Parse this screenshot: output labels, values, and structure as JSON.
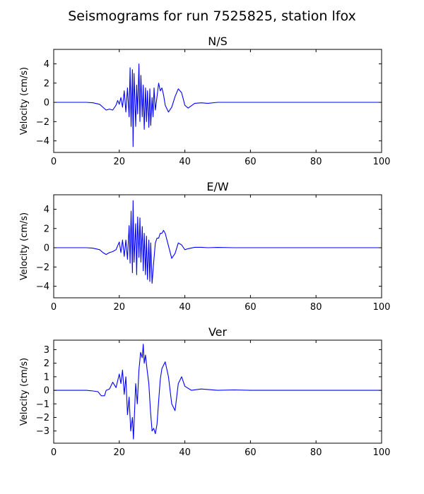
{
  "figure": {
    "title": "Seismograms for run 7525825, station lfox"
  },
  "chart_data": [
    {
      "type": "line",
      "title": "N/S",
      "xlabel": "",
      "ylabel": "Velocity (cm/s)",
      "xlim": [
        0,
        100
      ],
      "ylim": [
        -5.2,
        5.5
      ],
      "xticks": [
        0,
        20,
        40,
        60,
        80,
        100
      ],
      "yticks": [
        -4,
        -2,
        0,
        2,
        4
      ],
      "grid": false,
      "series": [
        {
          "color": "#0000ff",
          "x": [
            0,
            10,
            12,
            14,
            15,
            16,
            17,
            18,
            19,
            19.5,
            20,
            20.5,
            21,
            21.5,
            22,
            22.5,
            23,
            23.3,
            23.6,
            24,
            24.2,
            24.5,
            25,
            25.3,
            25.6,
            26,
            26.3,
            26.6,
            27,
            27.3,
            27.6,
            28,
            28.3,
            28.6,
            29,
            29.3,
            29.6,
            30,
            30.3,
            30.6,
            31,
            31.5,
            32,
            32.5,
            33,
            33.5,
            34,
            35,
            36,
            37,
            38,
            39,
            40,
            41,
            43,
            45,
            47,
            50,
            55,
            60,
            100
          ],
          "y": [
            0,
            0,
            -0.05,
            -0.2,
            -0.5,
            -0.8,
            -0.7,
            -0.8,
            -0.3,
            0.2,
            -0.2,
            0.5,
            -0.5,
            1.2,
            -1,
            1.5,
            -1.5,
            3.6,
            -2.5,
            3.4,
            -4.6,
            3,
            -2.5,
            1.8,
            -1.2,
            4.0,
            -2,
            2.8,
            -1.5,
            1.8,
            -2.8,
            1.5,
            -2,
            1.2,
            -2.6,
            1.4,
            -2.4,
            0.5,
            -1.5,
            1.5,
            -0.8,
            0.6,
            2.0,
            1.2,
            1.5,
            0.8,
            -0.3,
            -1.0,
            -0.5,
            0.6,
            1.4,
            1.0,
            -0.3,
            -0.6,
            -0.1,
            -0.05,
            -0.1,
            0,
            0,
            0,
            0
          ]
        }
      ]
    },
    {
      "type": "line",
      "title": "E/W",
      "xlabel": "",
      "ylabel": "Velocity (cm/s)",
      "xlim": [
        0,
        100
      ],
      "ylim": [
        -5.2,
        5.5
      ],
      "xticks": [
        0,
        20,
        40,
        60,
        80,
        100
      ],
      "yticks": [
        -4,
        -2,
        0,
        2,
        4
      ],
      "grid": false,
      "series": [
        {
          "color": "#0000ff",
          "x": [
            0,
            10,
            12,
            14,
            15,
            16,
            17,
            18,
            19,
            20,
            20.5,
            21,
            21.5,
            22,
            22.5,
            23,
            23.3,
            23.6,
            24,
            24.2,
            24.5,
            25,
            25.3,
            25.6,
            26,
            26.3,
            26.6,
            27,
            27.3,
            27.6,
            28,
            28.3,
            28.6,
            29,
            29.3,
            29.6,
            30,
            30.5,
            31,
            31.5,
            32,
            32.5,
            33,
            33.5,
            34,
            35,
            36,
            37,
            38,
            39,
            40,
            41,
            43,
            45,
            47,
            50,
            55,
            60,
            100
          ],
          "y": [
            0,
            0,
            -0.05,
            -0.2,
            -0.5,
            -0.7,
            -0.5,
            -0.4,
            -0.2,
            0.6,
            -0.5,
            0.8,
            -0.9,
            0.8,
            -1.2,
            2.3,
            -1.6,
            3.8,
            -2.6,
            4.9,
            -1.5,
            2.5,
            -2.8,
            3.2,
            -1.0,
            3.1,
            -1.5,
            2.2,
            -2.4,
            1.5,
            -2.8,
            1.2,
            -3.3,
            0.8,
            -3.5,
            0.5,
            -3.7,
            -1.5,
            0.5,
            1.0,
            1.0,
            1.5,
            1.5,
            1.8,
            1.5,
            0.2,
            -1.1,
            -0.6,
            0.5,
            0.3,
            -0.2,
            -0.1,
            0.05,
            0.05,
            0,
            0.03,
            0,
            0,
            0
          ]
        }
      ]
    },
    {
      "type": "line",
      "title": "Ver",
      "xlabel": "",
      "ylabel": "Velocity (cm/s)",
      "xlim": [
        0,
        100
      ],
      "ylim": [
        -3.9,
        3.7
      ],
      "xticks": [
        0,
        20,
        40,
        60,
        80,
        100
      ],
      "yticks": [
        -3,
        -2,
        -1,
        0,
        1,
        2,
        3
      ],
      "grid": false,
      "series": [
        {
          "color": "#0000ff",
          "x": [
            0,
            10,
            12,
            13.5,
            14.5,
            15.5,
            16,
            17,
            18,
            19,
            20,
            20.5,
            21,
            21.5,
            22,
            22.5,
            23,
            23.5,
            24,
            24.3,
            24.6,
            25,
            25.5,
            26,
            26.5,
            27,
            27.3,
            27.6,
            28,
            28.5,
            29,
            29.5,
            30,
            30.5,
            31,
            31.5,
            32,
            32.5,
            33,
            34,
            35,
            36,
            37,
            38,
            39,
            40,
            42,
            45,
            50,
            55,
            60,
            100
          ],
          "y": [
            0,
            0,
            -0.05,
            -0.1,
            -0.4,
            -0.4,
            0,
            0.1,
            0.6,
            0.2,
            1.2,
            0.5,
            1.5,
            -0.3,
            1.0,
            -1.8,
            -0.5,
            -3.0,
            -2.0,
            -3.6,
            -2.0,
            0.5,
            -1.0,
            1.5,
            2.8,
            2.4,
            3.4,
            2.0,
            2.6,
            1.5,
            0.5,
            -1.5,
            -3.0,
            -2.8,
            -3.2,
            -2.5,
            -0.8,
            0.8,
            1.6,
            2.1,
            1.0,
            -1.0,
            -1.5,
            0.5,
            1.0,
            0.3,
            0,
            0.1,
            0,
            0.03,
            0,
            0
          ]
        }
      ]
    }
  ]
}
